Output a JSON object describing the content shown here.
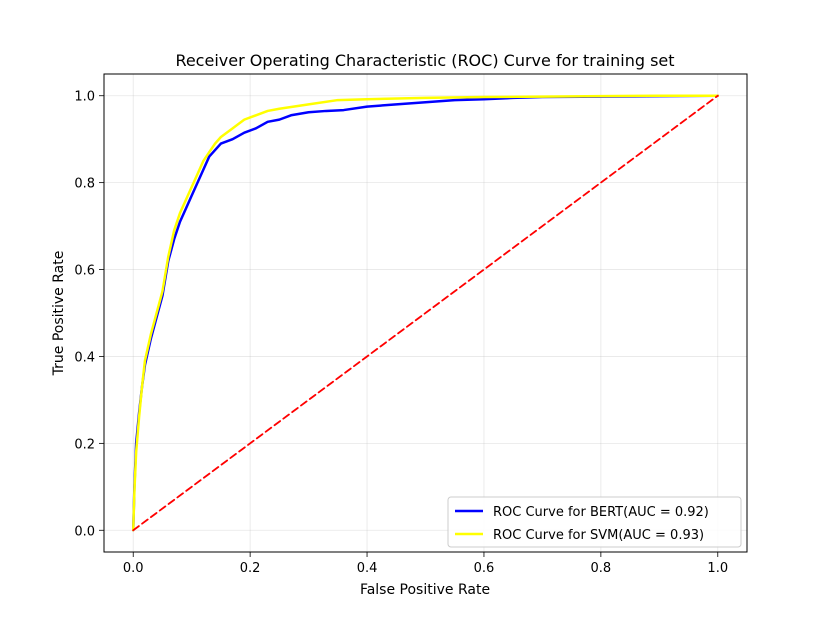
{
  "chart_data": {
    "type": "line",
    "title": "Receiver Operating Characteristic (ROC) Curve for training set",
    "xlabel": "False Positive Rate",
    "ylabel": "True Positive Rate",
    "xlim": [
      -0.05,
      1.05
    ],
    "ylim": [
      -0.05,
      1.05
    ],
    "xticks": [
      "0.0",
      "0.2",
      "0.4",
      "0.6",
      "0.8",
      "1.0"
    ],
    "yticks": [
      "0.0",
      "0.2",
      "0.4",
      "0.6",
      "0.8",
      "1.0"
    ],
    "grid": true,
    "legend_position": "lower-right",
    "series": [
      {
        "name": "ROC Curve for BERT(AUC = 0.92)",
        "color": "#0000ff",
        "style": "solid",
        "x": [
          0.0,
          0.002,
          0.005,
          0.01,
          0.015,
          0.02,
          0.03,
          0.04,
          0.05,
          0.06,
          0.07,
          0.08,
          0.09,
          0.1,
          0.11,
          0.12,
          0.13,
          0.14,
          0.15,
          0.17,
          0.19,
          0.21,
          0.23,
          0.25,
          0.27,
          0.3,
          0.33,
          0.36,
          0.4,
          0.45,
          0.5,
          0.55,
          0.6,
          0.65,
          0.7,
          0.8,
          0.9,
          1.0
        ],
        "y": [
          0.0,
          0.1,
          0.2,
          0.27,
          0.33,
          0.38,
          0.44,
          0.49,
          0.54,
          0.62,
          0.67,
          0.71,
          0.74,
          0.77,
          0.8,
          0.83,
          0.86,
          0.875,
          0.89,
          0.9,
          0.915,
          0.925,
          0.94,
          0.945,
          0.955,
          0.962,
          0.965,
          0.967,
          0.975,
          0.98,
          0.985,
          0.99,
          0.992,
          0.995,
          0.997,
          0.998,
          0.999,
          1.0
        ]
      },
      {
        "name": "ROC Curve for SVM(AUC = 0.93)",
        "color": "#ffff00",
        "style": "solid",
        "x": [
          0.0,
          0.002,
          0.005,
          0.01,
          0.015,
          0.02,
          0.03,
          0.04,
          0.05,
          0.06,
          0.07,
          0.08,
          0.09,
          0.1,
          0.11,
          0.12,
          0.13,
          0.14,
          0.15,
          0.17,
          0.19,
          0.21,
          0.23,
          0.25,
          0.3,
          0.35,
          0.4,
          0.5,
          0.6,
          0.7,
          0.8,
          0.9,
          1.0
        ],
        "y": [
          0.0,
          0.09,
          0.18,
          0.26,
          0.33,
          0.39,
          0.45,
          0.5,
          0.55,
          0.63,
          0.69,
          0.73,
          0.76,
          0.79,
          0.82,
          0.85,
          0.87,
          0.89,
          0.905,
          0.925,
          0.945,
          0.955,
          0.965,
          0.97,
          0.98,
          0.99,
          0.992,
          0.995,
          0.997,
          0.998,
          0.999,
          1.0,
          1.0
        ]
      },
      {
        "name": "",
        "color": "#ff0000",
        "style": "dashed",
        "x": [
          0.0,
          1.0
        ],
        "y": [
          0.0,
          1.0
        ]
      }
    ]
  }
}
